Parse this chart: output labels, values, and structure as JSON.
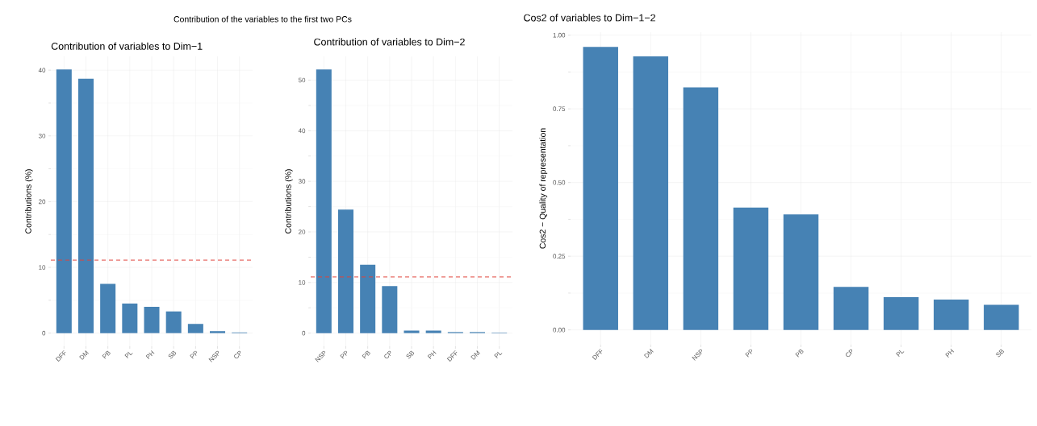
{
  "chart_data": [
    {
      "type": "bar",
      "title": "Contribution of the variables to the first two PCs",
      "subtitle": "Contribution of variables to Dim−1",
      "ylabel": "Contributions (%)",
      "categories": [
        "DFF",
        "DM",
        "PB",
        "PL",
        "PH",
        "SB",
        "PP",
        "NSP",
        "CP"
      ],
      "values": [
        40.1,
        38.7,
        7.5,
        4.5,
        4.0,
        3.3,
        1.4,
        0.3,
        0.1
      ],
      "color": "#4682b4",
      "ylim": [
        -2,
        42.1
      ],
      "yticks": [
        0,
        10,
        20,
        30,
        40
      ],
      "grid": true,
      "ref_lines": [
        {
          "axis": "y",
          "value": 11.1,
          "color": "#e0443c",
          "line_style": "dashed"
        }
      ]
    },
    {
      "type": "bar",
      "title": "Contribution of variables to Dim−2",
      "ylabel": "Contributions (%)",
      "categories": [
        "NSP",
        "PP",
        "PB",
        "CP",
        "SB",
        "PH",
        "DFF",
        "DM",
        "PL"
      ],
      "values": [
        52.1,
        24.4,
        13.5,
        9.3,
        0.5,
        0.5,
        0.2,
        0.2,
        0.1
      ],
      "color": "#4682b4",
      "ylim": [
        -2.6,
        54.7
      ],
      "yticks": [
        0,
        10,
        20,
        30,
        40,
        50
      ],
      "grid": true,
      "ref_lines": [
        {
          "axis": "y",
          "value": 11.1,
          "color": "#e0443c",
          "line_style": "dashed"
        }
      ]
    },
    {
      "type": "bar",
      "title": "Cos2 of variables to Dim−1−2",
      "ylabel": "Cos2 − Quality of representation",
      "categories": [
        "DFF",
        "DM",
        "NSP",
        "PP",
        "PB",
        "CP",
        "PL",
        "PH",
        "SB"
      ],
      "values": [
        0.96,
        0.928,
        0.823,
        0.415,
        0.392,
        0.146,
        0.111,
        0.103,
        0.085
      ],
      "color": "#4682b4",
      "ylim": [
        -0.05,
        1.01
      ],
      "yticks": [
        {
          "value": 0,
          "label": "0.00"
        },
        {
          "value": 0.25,
          "label": "0.25"
        },
        {
          "value": 0.5,
          "label": "0.50"
        },
        {
          "value": 0.75,
          "label": "0.75"
        },
        {
          "value": 1,
          "label": "1.00"
        }
      ],
      "grid": true
    }
  ]
}
